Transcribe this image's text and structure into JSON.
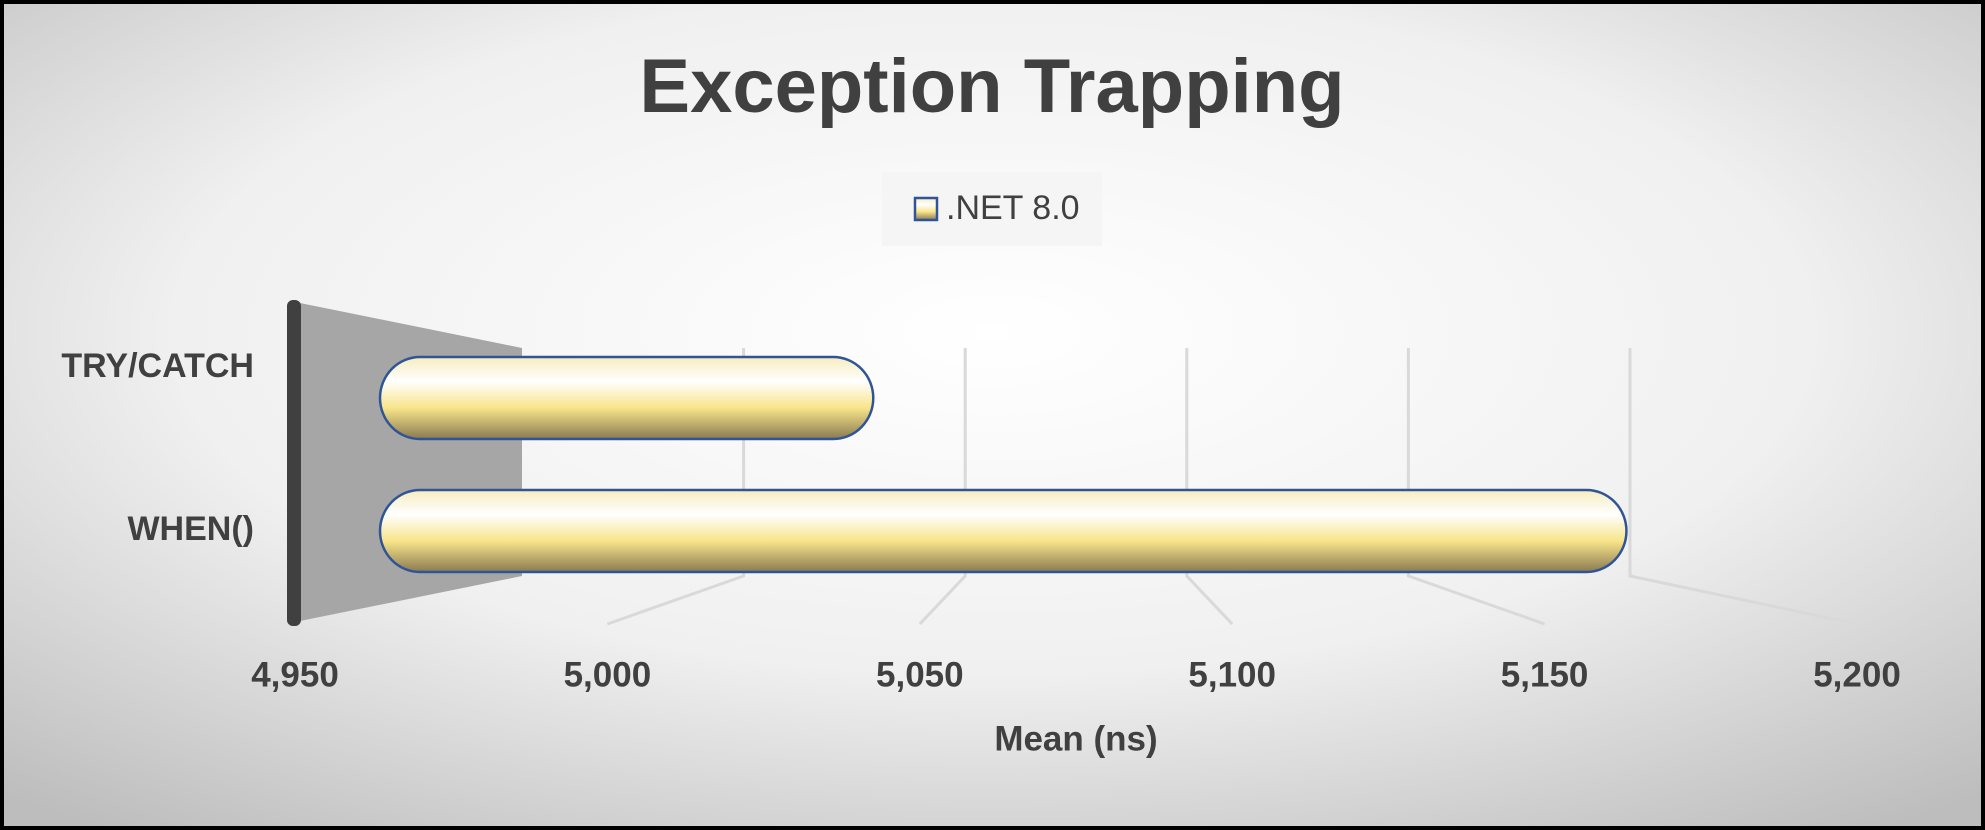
{
  "chart_data": {
    "type": "bar",
    "orientation": "horizontal",
    "title": "Exception Trapping",
    "categories": [
      "TRY/CATCH",
      "WHEN()"
    ],
    "series": [
      {
        "name": ".NET 8.0",
        "color": "#f8e58a",
        "values": [
          5043,
          5185
        ]
      }
    ],
    "xlim": [
      4950,
      5200
    ],
    "xticks": [
      {
        "value": 4950,
        "label": "4,950"
      },
      {
        "value": 5000,
        "label": "5,000"
      },
      {
        "value": 5050,
        "label": "5,050"
      },
      {
        "value": 5100,
        "label": "5,100"
      },
      {
        "value": 5150,
        "label": "5,150"
      },
      {
        "value": 5200,
        "label": "5,200"
      }
    ],
    "x_label": "Mean (ns)",
    "grid": true,
    "legend": "top"
  }
}
